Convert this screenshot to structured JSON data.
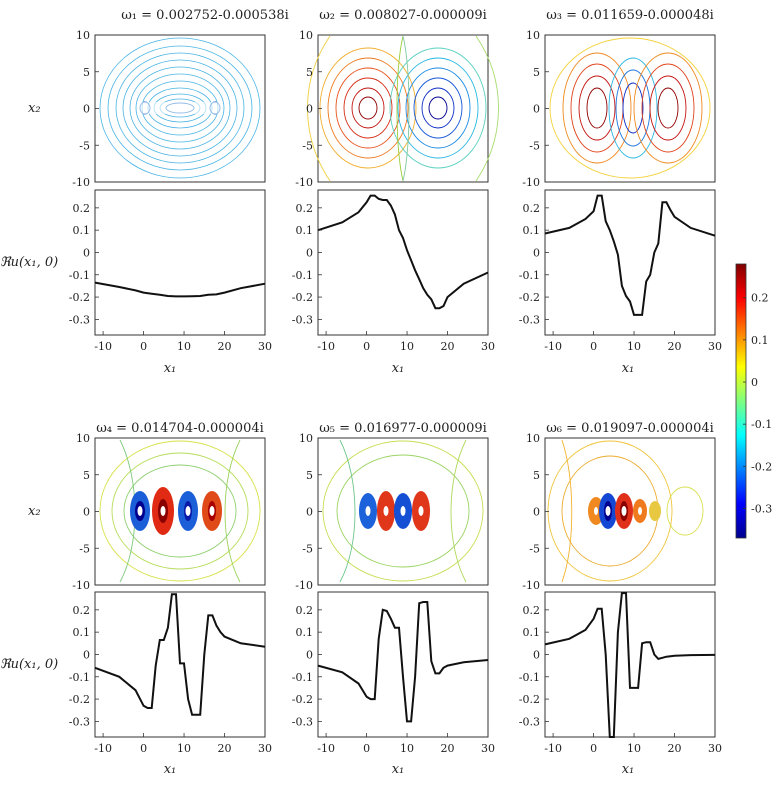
{
  "chart_data": {
    "type": "contour-panels",
    "field_ticks": [
      "-10",
      "-5",
      "0",
      "5",
      "10"
    ],
    "line_ticks_x": [
      "-10",
      "0",
      "10",
      "20",
      "30"
    ],
    "line_ticks_y": [
      "0.2",
      "0.1",
      "0",
      "-0.1",
      "-0.2",
      "-0.3"
    ],
    "x1_label": "x₁",
    "x2_label": "x₂",
    "line_ylabel": "ℜu(x₁, 0)",
    "line_ylim": [
      -0.37,
      0.28
    ],
    "line_xlim": [
      -12,
      30
    ],
    "colorbar": {
      "ticks": [
        "0.2",
        "0.1",
        "0",
        "-0.1",
        "-0.2",
        "-0.3"
      ],
      "range": [
        -0.37,
        0.28
      ]
    },
    "modes": [
      {
        "title": "ω₁ = 0.002752-0.000538i",
        "profile": {
          "x": [
            -12,
            -6,
            -2,
            0,
            2,
            4,
            6,
            8,
            10,
            12,
            14,
            16,
            18,
            20,
            24,
            30
          ],
          "y": [
            -0.135,
            -0.155,
            -0.17,
            -0.18,
            -0.185,
            -0.19,
            -0.195,
            -0.197,
            -0.197,
            -0.196,
            -0.195,
            -0.19,
            -0.188,
            -0.18,
            -0.16,
            -0.14
          ]
        }
      },
      {
        "title": "ω₂ = 0.008027-0.000009i",
        "profile": {
          "x": [
            -12,
            -6,
            -2,
            0,
            1,
            2,
            3,
            4,
            5,
            6,
            7,
            8,
            9,
            10,
            11,
            12,
            13,
            14,
            15,
            16,
            17,
            18,
            19,
            20,
            24,
            30
          ],
          "y": [
            0.1,
            0.135,
            0.18,
            0.225,
            0.255,
            0.255,
            0.24,
            0.235,
            0.235,
            0.21,
            0.17,
            0.1,
            0.065,
            0.01,
            -0.035,
            -0.08,
            -0.12,
            -0.16,
            -0.19,
            -0.21,
            -0.25,
            -0.25,
            -0.24,
            -0.2,
            -0.14,
            -0.09
          ]
        }
      },
      {
        "title": "ω₃ = 0.011659-0.000048i",
        "profile": {
          "x": [
            -12,
            -6,
            -2,
            0,
            1,
            2,
            3,
            4,
            5,
            6,
            7,
            8,
            9,
            10,
            11,
            12,
            13,
            14,
            15,
            16,
            17,
            18,
            19,
            20,
            24,
            30
          ],
          "y": [
            0.085,
            0.11,
            0.15,
            0.185,
            0.255,
            0.255,
            0.14,
            0.1,
            0.05,
            -0.01,
            -0.15,
            -0.195,
            -0.22,
            -0.28,
            -0.28,
            -0.28,
            -0.13,
            -0.1,
            0.0,
            0.04,
            0.225,
            0.225,
            0.19,
            0.16,
            0.11,
            0.075
          ]
        }
      },
      {
        "title": "ω₄ = 0.014704-0.000004i",
        "profile": {
          "x": [
            -12,
            -6,
            -2,
            0,
            1,
            2,
            3,
            4,
            5,
            6,
            7,
            8,
            9,
            10,
            11,
            12,
            13,
            14,
            15,
            16,
            17,
            18,
            19,
            20,
            24,
            30
          ],
          "y": [
            -0.06,
            -0.1,
            -0.16,
            -0.23,
            -0.24,
            -0.24,
            -0.05,
            0.065,
            0.065,
            0.12,
            0.27,
            0.27,
            -0.04,
            -0.04,
            -0.2,
            -0.27,
            -0.27,
            -0.27,
            0.0,
            0.175,
            0.175,
            0.13,
            0.1,
            0.08,
            0.05,
            0.035
          ]
        }
      },
      {
        "title": "ω₅ = 0.016977-0.000009i",
        "profile": {
          "x": [
            -12,
            -6,
            -2,
            0,
            1,
            2,
            3,
            4,
            5,
            6,
            7,
            8,
            9,
            10,
            11,
            12,
            13,
            14,
            15,
            16,
            17,
            18,
            19,
            20,
            24,
            30
          ],
          "y": [
            -0.05,
            -0.08,
            -0.13,
            -0.19,
            -0.2,
            -0.2,
            0.07,
            0.2,
            0.195,
            0.16,
            0.12,
            0.12,
            -0.1,
            -0.3,
            -0.3,
            -0.1,
            0.23,
            0.235,
            0.235,
            -0.03,
            -0.085,
            -0.085,
            -0.06,
            -0.05,
            -0.035,
            -0.025
          ]
        }
      },
      {
        "title": "ω₆ = 0.019097-0.000004i",
        "profile": {
          "x": [
            -12,
            -6,
            -2,
            0,
            1,
            2,
            3,
            4,
            5,
            6,
            7,
            8,
            9,
            10,
            11,
            12,
            13,
            14,
            15,
            16,
            17,
            18,
            19,
            20,
            24,
            30
          ],
          "y": [
            0.045,
            0.07,
            0.11,
            0.16,
            0.205,
            0.205,
            0.0,
            -0.38,
            -0.38,
            0.1,
            0.275,
            0.275,
            -0.15,
            -0.15,
            -0.15,
            0.05,
            0.055,
            0.055,
            0.0,
            -0.02,
            -0.015,
            -0.01,
            -0.008,
            -0.006,
            -0.003,
            -0.002
          ]
        }
      }
    ]
  }
}
